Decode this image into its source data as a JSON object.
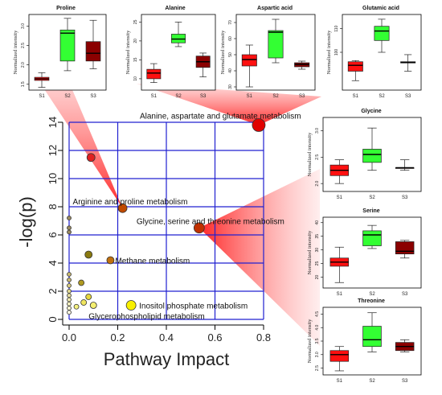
{
  "chart_data": [
    {
      "type": "scatter",
      "title": "",
      "xlabel": "Pathway Impact",
      "ylabel": "-log(p)",
      "xlim": [
        0,
        0.8
      ],
      "ylim": [
        0,
        14
      ],
      "xticks": [
        "0.0",
        "0.2",
        "0.4",
        "0.6",
        "0.8"
      ],
      "yticks": [
        "0",
        "2",
        "4",
        "6",
        "8",
        "10",
        "12",
        "14"
      ],
      "grid": true,
      "points": [
        {
          "x": 0.78,
          "y": 13.8,
          "color": "#e00000",
          "size": 8
        },
        {
          "x": 0.09,
          "y": 11.5,
          "color": "#e02020",
          "size": 5
        },
        {
          "x": 0.22,
          "y": 7.9,
          "color": "#c04a00",
          "size": 5.5
        },
        {
          "x": 0.535,
          "y": 6.5,
          "color": "#c03000",
          "size": 6.5
        },
        {
          "x": 0.08,
          "y": 4.6,
          "color": "#8a7a10",
          "size": 4.5
        },
        {
          "x": 0.17,
          "y": 4.2,
          "color": "#c07010",
          "size": 4.5
        },
        {
          "x": 0.05,
          "y": 2.6,
          "color": "#b09a20",
          "size": 3.5
        },
        {
          "x": 0.08,
          "y": 1.6,
          "color": "#e6d640",
          "size": 3.5
        },
        {
          "x": 0.06,
          "y": 1.2,
          "color": "#f0e660",
          "size": 3.5
        },
        {
          "x": 0.1,
          "y": 1.0,
          "color": "#f4ef70",
          "size": 4
        },
        {
          "x": 0.03,
          "y": 0.9,
          "color": "#f6f280",
          "size": 3
        },
        {
          "x": 0.255,
          "y": 1.0,
          "color": "#f8f000",
          "size": 6
        },
        {
          "x": 0.0,
          "y": 7.2,
          "color": "#9a8a60",
          "size": 2.5
        },
        {
          "x": 0.0,
          "y": 6.5,
          "color": "#9a8a60",
          "size": 2.5
        },
        {
          "x": 0.0,
          "y": 6.2,
          "color": "#9a8a60",
          "size": 2.5
        },
        {
          "x": 0.0,
          "y": 3.2,
          "color": "#c8b870",
          "size": 2.5
        },
        {
          "x": 0.0,
          "y": 2.8,
          "color": "#c8b870",
          "size": 2.5
        },
        {
          "x": 0.0,
          "y": 2.4,
          "color": "#d8cc80",
          "size": 2.5
        },
        {
          "x": 0.0,
          "y": 2.0,
          "color": "#e0d890",
          "size": 2.5
        },
        {
          "x": 0.0,
          "y": 1.7,
          "color": "#e8e0a0",
          "size": 2.5
        },
        {
          "x": 0.0,
          "y": 1.4,
          "color": "#f0eab0",
          "size": 2.5
        },
        {
          "x": 0.0,
          "y": 1.1,
          "color": "#f4f0c0",
          "size": 2.5
        },
        {
          "x": 0.0,
          "y": 0.8,
          "color": "#f8f4d0",
          "size": 2.5
        },
        {
          "x": 0.0,
          "y": 0.5,
          "color": "#fbf8e0",
          "size": 2.5
        }
      ],
      "annotations": [
        {
          "text": "Alanine, aspartate and glutamate metabolism",
          "x": 0.78,
          "y": 13.8
        },
        {
          "text": "Arginine and proline metabolism",
          "x": 0.22,
          "y": 7.9
        },
        {
          "text": "Glycine, serine and threonine metabolism",
          "x": 0.535,
          "y": 6.5
        },
        {
          "text": "Methane metabolism",
          "x": 0.17,
          "y": 4.2
        },
        {
          "text": "Inositol phosphate metabolism",
          "x": 0.255,
          "y": 1.0
        },
        {
          "text": "Glycerophospholipid metabolism",
          "x": 0.1,
          "y": 0.6
        }
      ]
    },
    {
      "type": "box",
      "title": "Proline",
      "ylabel": "Normalized intensity",
      "categories": [
        "S1",
        "S2",
        "S3"
      ],
      "yticks": [
        "1.5",
        "2.0",
        "2.5",
        "3.0"
      ],
      "ylim": [
        1.35,
        3.3
      ],
      "boxes": [
        {
          "min": 1.42,
          "q1": 1.6,
          "median": 1.64,
          "q3": 1.68,
          "max": 1.8,
          "color": "#ff1010"
        },
        {
          "min": 1.85,
          "q1": 2.1,
          "median": 2.82,
          "q3": 2.9,
          "max": 3.2,
          "color": "#33ff33"
        },
        {
          "min": 1.9,
          "q1": 2.1,
          "median": 2.3,
          "q3": 2.6,
          "max": 3.15,
          "color": "#8b0000"
        }
      ]
    },
    {
      "type": "box",
      "title": "Alanine",
      "ylabel": "Normalized intensity",
      "categories": [
        "S1",
        "S2",
        "S3"
      ],
      "yticks": [
        "10",
        "15",
        "20",
        "25"
      ],
      "ylim": [
        7,
        27
      ],
      "boxes": [
        {
          "min": 9,
          "q1": 10,
          "median": 11.5,
          "q3": 12.5,
          "max": 14,
          "color": "#ff1010"
        },
        {
          "min": 18.5,
          "q1": 19.5,
          "median": 20.5,
          "q3": 21.8,
          "max": 25,
          "color": "#33ff33"
        },
        {
          "min": 10.5,
          "q1": 13,
          "median": 14.5,
          "q3": 16,
          "max": 16.8,
          "color": "#8b0000"
        }
      ]
    },
    {
      "type": "box",
      "title": "Aspartic acid",
      "ylabel": "Normalized intensity",
      "categories": [
        "S1",
        "S2",
        "S3"
      ],
      "yticks": [
        "30",
        "40",
        "50",
        "60",
        "70"
      ],
      "ylim": [
        28,
        75
      ],
      "boxes": [
        {
          "min": 30,
          "q1": 43,
          "median": 47,
          "q3": 50,
          "max": 56,
          "color": "#ff1010"
        },
        {
          "min": 45,
          "q1": 48,
          "median": 64,
          "q3": 65,
          "max": 72,
          "color": "#33ff33"
        },
        {
          "min": 41,
          "q1": 42.5,
          "median": 44,
          "q3": 45,
          "max": 46,
          "color": "#8b0000"
        }
      ]
    },
    {
      "type": "box",
      "title": "Glutamic acid",
      "ylabel": "Normalized intensity",
      "categories": [
        "S1",
        "S2",
        "S3"
      ],
      "yticks": [
        "100",
        "110"
      ],
      "ylim": [
        84,
        116
      ],
      "boxes": [
        {
          "min": 88,
          "q1": 92,
          "median": 94.5,
          "q3": 96,
          "max": 96.5,
          "color": "#ff1010"
        },
        {
          "min": 100,
          "q1": 105,
          "median": 109,
          "q3": 111,
          "max": 114,
          "color": "#33ff33"
        },
        {
          "min": 92,
          "q1": 95.5,
          "median": 95.7,
          "q3": 96,
          "max": 99,
          "color": "#8b0000"
        }
      ]
    },
    {
      "type": "box",
      "title": "Glycine",
      "ylabel": "Normalized intensity",
      "categories": [
        "S1",
        "S2",
        "S3"
      ],
      "yticks": [
        "2.0",
        "2.5",
        "3.0"
      ],
      "ylim": [
        1.85,
        3.25
      ],
      "boxes": [
        {
          "min": 2.0,
          "q1": 2.15,
          "median": 2.25,
          "q3": 2.35,
          "max": 2.45,
          "color": "#ff1010"
        },
        {
          "min": 2.25,
          "q1": 2.4,
          "median": 2.55,
          "q3": 2.65,
          "max": 3.05,
          "color": "#33ff33"
        },
        {
          "min": 2.25,
          "q1": 2.3,
          "median": 2.3,
          "q3": 2.3,
          "max": 2.45,
          "color": "#8b0000"
        }
      ]
    },
    {
      "type": "box",
      "title": "Serine",
      "ylabel": "Normalized intensity",
      "categories": [
        "S1",
        "S2",
        "S3"
      ],
      "yticks": [
        "20",
        "25",
        "30",
        "35",
        "40"
      ],
      "ylim": [
        16,
        42
      ],
      "boxes": [
        {
          "min": 18,
          "q1": 24,
          "median": 25.5,
          "q3": 27,
          "max": 31,
          "color": "#ff1010"
        },
        {
          "min": 30.5,
          "q1": 31.5,
          "median": 35.5,
          "q3": 37,
          "max": 39,
          "color": "#33ff33"
        },
        {
          "min": 27,
          "q1": 28.5,
          "median": 29.5,
          "q3": 33,
          "max": 33.5,
          "color": "#8b0000"
        }
      ]
    },
    {
      "type": "box",
      "title": "Threonine",
      "ylabel": "Normalized intensity",
      "categories": [
        "S1",
        "S2",
        "S3"
      ],
      "yticks": [
        "2.5",
        "3.0",
        "3.5",
        "4.0",
        "4.5"
      ],
      "ylim": [
        2.25,
        4.75
      ],
      "boxes": [
        {
          "min": 2.4,
          "q1": 2.75,
          "median": 3.0,
          "q3": 3.15,
          "max": 3.3,
          "color": "#ff1010"
        },
        {
          "min": 3.1,
          "q1": 3.3,
          "median": 3.55,
          "q3": 4.05,
          "max": 4.55,
          "color": "#33ff33"
        },
        {
          "min": 3.1,
          "q1": 3.15,
          "median": 3.3,
          "q3": 3.45,
          "max": 3.55,
          "color": "#8b0000"
        }
      ]
    }
  ]
}
